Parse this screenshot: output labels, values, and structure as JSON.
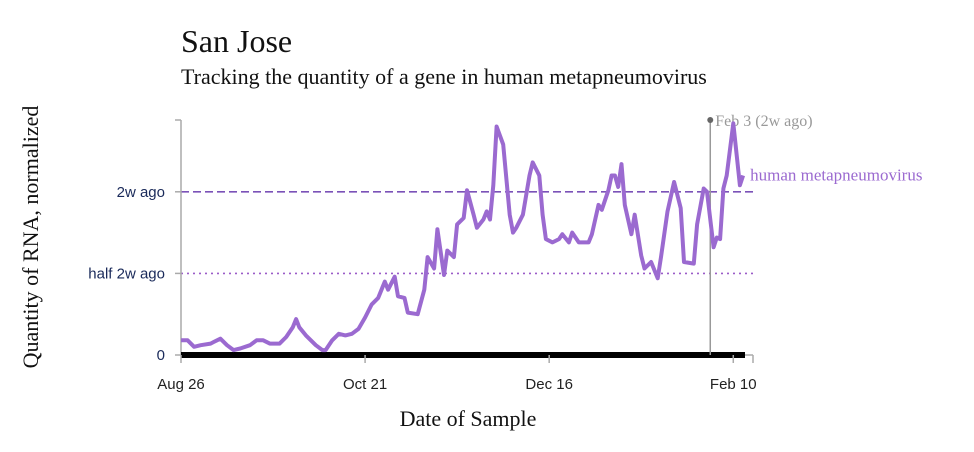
{
  "chart_data": {
    "type": "line",
    "title": "San Jose",
    "subtitle": "Tracking the quantity of a gene in human metapneumovirus",
    "x_label": "Date of Sample",
    "y_label": "Quantity of RNA, normalized",
    "x": [
      "Aug 26",
      "Aug 28",
      "Aug 30",
      "Sep 1",
      "Sep 4",
      "Sep 5",
      "Sep 7",
      "Sep 9",
      "Sep 11",
      "Sep 13",
      "Sep 16",
      "Sep 18",
      "Sep 20",
      "Sep 22",
      "Sep 25",
      "Sep 27",
      "Sep 29",
      "Sep 30",
      "Oct 1",
      "Oct 3",
      "Oct 5",
      "Oct 6",
      "Oct 8",
      "Oct 9",
      "Oct 11",
      "Oct 13",
      "Oct 15",
      "Oct 17",
      "Oct 19",
      "Oct 21",
      "Oct 23",
      "Oct 25",
      "Oct 27",
      "Oct 28",
      "Oct 30",
      "Oct 31",
      "Nov 2",
      "Nov 3",
      "Nov 6",
      "Nov 8",
      "Nov 9",
      "Nov 11",
      "Nov 12",
      "Nov 14",
      "Nov 15",
      "Nov 17",
      "Nov 18",
      "Nov 20",
      "Nov 21",
      "Nov 23",
      "Nov 24",
      "Nov 26",
      "Nov 27",
      "Nov 28",
      "Nov 29",
      "Nov 30",
      "Dec 2",
      "Dec 4",
      "Dec 5",
      "Dec 6",
      "Dec 8",
      "Dec 10",
      "Dec 11",
      "Dec 13",
      "Dec 14",
      "Dec 15",
      "Dec 17",
      "Dec 19",
      "Dec 20",
      "Dec 22",
      "Dec 23",
      "Dec 25",
      "Dec 28",
      "Dec 29",
      "Dec 31",
      "Jan 1",
      "Jan 3",
      "Jan 4",
      "Jan 5",
      "Jan 6",
      "Jan 7",
      "Jan 8",
      "Jan 10",
      "Jan 11",
      "Jan 13",
      "Jan 14",
      "Jan 16",
      "Jan 18",
      "Jan 19",
      "Jan 21",
      "Jan 23",
      "Jan 25",
      "Jan 26",
      "Jan 29",
      "Jan 30",
      "Feb 1",
      "Feb 2",
      "Feb 4",
      "Feb 5",
      "Feb 6",
      "Feb 7",
      "Feb 8",
      "Feb 10",
      "Feb 11",
      "Feb 12",
      "Feb 13"
    ],
    "series": [
      {
        "name": "human metapneumovirus",
        "color": "#9b6ad0",
        "values": [
          0.09,
          0.09,
          0.05,
          0.06,
          0.07,
          0.08,
          0.1,
          0.06,
          0.03,
          0.04,
          0.06,
          0.09,
          0.09,
          0.07,
          0.07,
          0.11,
          0.17,
          0.22,
          0.17,
          0.12,
          0.08,
          0.06,
          0.03,
          0.03,
          0.09,
          0.13,
          0.12,
          0.13,
          0.16,
          0.23,
          0.31,
          0.35,
          0.45,
          0.4,
          0.48,
          0.36,
          0.35,
          0.26,
          0.25,
          0.4,
          0.6,
          0.53,
          0.77,
          0.49,
          0.64,
          0.6,
          0.8,
          0.84,
          1.01,
          0.86,
          0.78,
          0.83,
          0.88,
          0.83,
          1.04,
          1.4,
          1.29,
          0.86,
          0.75,
          0.78,
          0.86,
          1.1,
          1.18,
          1.1,
          0.86,
          0.71,
          0.69,
          0.71,
          0.74,
          0.69,
          0.75,
          0.69,
          0.69,
          0.74,
          0.92,
          0.89,
          1.01,
          1.1,
          1.1,
          1.03,
          1.17,
          0.92,
          0.74,
          0.86,
          0.61,
          0.53,
          0.57,
          0.47,
          0.6,
          0.88,
          1.06,
          0.9,
          0.57,
          0.56,
          0.8,
          1.02,
          1.0,
          0.66,
          0.72,
          0.71,
          1.02,
          1.1,
          1.42,
          1.23,
          1.04,
          1.1
        ]
      }
    ],
    "xlim": [
      "Aug 26",
      "Feb 16"
    ],
    "xticks": [
      "Aug 26",
      "Oct 21",
      "Dec 16",
      "Feb 10"
    ],
    "ylim": [
      0,
      1.44
    ],
    "yticks": [
      0,
      {
        "value": 0.5,
        "label": "half 2w ago"
      },
      {
        "value": 1,
        "label": "2w ago"
      }
    ],
    "reference_lines": [
      {
        "value": 1,
        "style": "dashed",
        "color": "#7b52b8"
      },
      {
        "value": 0.5,
        "style": "dotted",
        "color": "#9b5cc8"
      }
    ],
    "annotation": {
      "x": "Feb 3",
      "label": "Feb 3 (2w ago)",
      "color": "#999999"
    }
  }
}
